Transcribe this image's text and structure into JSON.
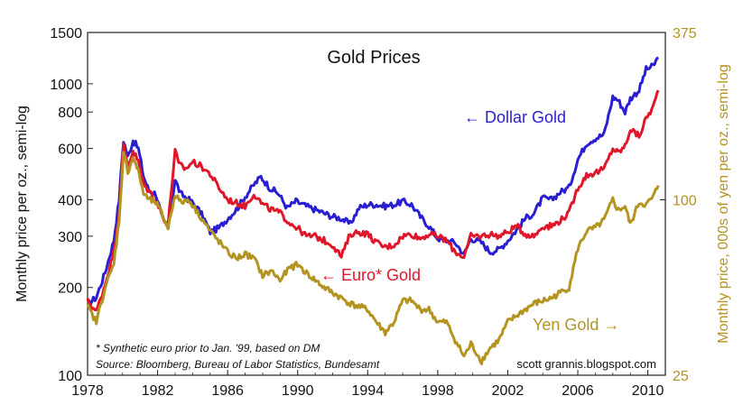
{
  "chart_data": {
    "type": "line",
    "title": "Gold Prices",
    "ylabel_left": "Monthly price per oz., semi-log",
    "ylabel_right": "Monthly price, 000s of yen per oz., semi-log",
    "left_axis": {
      "scale": "log",
      "range": [
        100,
        1500
      ],
      "ticks": [
        "1500",
        "1000",
        "800",
        "600",
        "400",
        "300",
        "200",
        "100"
      ]
    },
    "right_axis": {
      "scale": "log",
      "range": [
        25,
        375
      ],
      "ticks": [
        "375",
        "100",
        "25"
      ]
    },
    "x_axis": {
      "range": [
        1978,
        2011
      ],
      "ticks": [
        "1978",
        "1982",
        "1986",
        "1990",
        "1994",
        "1998",
        "2002",
        "2006",
        "2010"
      ]
    },
    "legend_placement": "inline labels",
    "series": [
      {
        "name": "Dollar Gold",
        "color": "#2a1fd0",
        "axis": "left",
        "points": [
          [
            1978.0,
            175
          ],
          [
            1978.5,
            185
          ],
          [
            1979.0,
            225
          ],
          [
            1979.5,
            290
          ],
          [
            1979.8,
            400
          ],
          [
            1980.05,
            640
          ],
          [
            1980.3,
            560
          ],
          [
            1980.6,
            640
          ],
          [
            1980.9,
            600
          ],
          [
            1981.2,
            480
          ],
          [
            1981.5,
            430
          ],
          [
            1981.9,
            420
          ],
          [
            1982.3,
            340
          ],
          [
            1982.6,
            320
          ],
          [
            1983.0,
            470
          ],
          [
            1983.3,
            420
          ],
          [
            1983.8,
            400
          ],
          [
            1984.2,
            380
          ],
          [
            1984.6,
            350
          ],
          [
            1985.0,
            310
          ],
          [
            1985.5,
            320
          ],
          [
            1986.0,
            345
          ],
          [
            1986.5,
            370
          ],
          [
            1987.0,
            410
          ],
          [
            1987.5,
            450
          ],
          [
            1987.9,
            480
          ],
          [
            1988.4,
            440
          ],
          [
            1988.9,
            420
          ],
          [
            1989.4,
            375
          ],
          [
            1989.9,
            395
          ],
          [
            1990.5,
            380
          ],
          [
            1991.0,
            370
          ],
          [
            1991.5,
            360
          ],
          [
            1992.0,
            350
          ],
          [
            1992.5,
            345
          ],
          [
            1993.0,
            330
          ],
          [
            1993.5,
            375
          ],
          [
            1994.0,
            385
          ],
          [
            1994.5,
            385
          ],
          [
            1995.0,
            380
          ],
          [
            1995.5,
            385
          ],
          [
            1996.0,
            395
          ],
          [
            1996.5,
            385
          ],
          [
            1997.0,
            350
          ],
          [
            1997.5,
            325
          ],
          [
            1998.0,
            295
          ],
          [
            1998.5,
            290
          ],
          [
            1999.0,
            285
          ],
          [
            1999.5,
            260
          ],
          [
            1999.9,
            295
          ],
          [
            2000.5,
            285
          ],
          [
            2001.0,
            265
          ],
          [
            2001.5,
            270
          ],
          [
            2002.0,
            290
          ],
          [
            2002.5,
            315
          ],
          [
            2003.0,
            345
          ],
          [
            2003.5,
            360
          ],
          [
            2004.0,
            405
          ],
          [
            2004.5,
            400
          ],
          [
            2005.0,
            425
          ],
          [
            2005.5,
            440
          ],
          [
            2006.0,
            550
          ],
          [
            2006.5,
            625
          ],
          [
            2007.0,
            650
          ],
          [
            2007.5,
            670
          ],
          [
            2008.0,
            900
          ],
          [
            2008.3,
            880
          ],
          [
            2008.7,
            800
          ],
          [
            2009.0,
            890
          ],
          [
            2009.5,
            950
          ],
          [
            2009.9,
            1120
          ],
          [
            2010.3,
            1150
          ],
          [
            2010.6,
            1230
          ]
        ]
      },
      {
        "name": "Euro* Gold",
        "color": "#e0172b",
        "axis": "left",
        "points": [
          [
            1978.0,
            180
          ],
          [
            1978.5,
            165
          ],
          [
            1979.0,
            205
          ],
          [
            1979.5,
            265
          ],
          [
            1979.8,
            360
          ],
          [
            1980.05,
            610
          ],
          [
            1980.3,
            520
          ],
          [
            1980.6,
            590
          ],
          [
            1980.9,
            540
          ],
          [
            1981.2,
            450
          ],
          [
            1981.5,
            430
          ],
          [
            1981.9,
            400
          ],
          [
            1982.3,
            350
          ],
          [
            1982.6,
            330
          ],
          [
            1983.0,
            590
          ],
          [
            1983.2,
            530
          ],
          [
            1983.6,
            510
          ],
          [
            1984.0,
            540
          ],
          [
            1984.5,
            520
          ],
          [
            1985.0,
            490
          ],
          [
            1985.5,
            440
          ],
          [
            1986.0,
            400
          ],
          [
            1986.5,
            390
          ],
          [
            1987.0,
            380
          ],
          [
            1987.5,
            420
          ],
          [
            1988.0,
            385
          ],
          [
            1988.5,
            370
          ],
          [
            1989.0,
            360
          ],
          [
            1989.5,
            335
          ],
          [
            1990.0,
            320
          ],
          [
            1990.5,
            300
          ],
          [
            1991.0,
            300
          ],
          [
            1991.5,
            290
          ],
          [
            1992.0,
            280
          ],
          [
            1992.5,
            255
          ],
          [
            1993.0,
            305
          ],
          [
            1993.5,
            310
          ],
          [
            1994.0,
            305
          ],
          [
            1994.5,
            285
          ],
          [
            1995.0,
            275
          ],
          [
            1995.5,
            280
          ],
          [
            1996.0,
            300
          ],
          [
            1996.5,
            305
          ],
          [
            1997.0,
            295
          ],
          [
            1997.5,
            305
          ],
          [
            1998.0,
            300
          ],
          [
            1998.5,
            290
          ],
          [
            1999.0,
            265
          ],
          [
            1999.5,
            255
          ],
          [
            1999.9,
            300
          ],
          [
            2000.5,
            300
          ],
          [
            2001.0,
            305
          ],
          [
            2001.5,
            300
          ],
          [
            2002.0,
            310
          ],
          [
            2002.5,
            325
          ],
          [
            2003.0,
            305
          ],
          [
            2003.5,
            300
          ],
          [
            2004.0,
            325
          ],
          [
            2004.5,
            325
          ],
          [
            2005.0,
            340
          ],
          [
            2005.5,
            360
          ],
          [
            2006.0,
            440
          ],
          [
            2006.5,
            485
          ],
          [
            2007.0,
            495
          ],
          [
            2007.5,
            510
          ],
          [
            2008.0,
            600
          ],
          [
            2008.3,
            580
          ],
          [
            2008.7,
            610
          ],
          [
            2009.0,
            700
          ],
          [
            2009.5,
            660
          ],
          [
            2009.9,
            760
          ],
          [
            2010.3,
            830
          ],
          [
            2010.6,
            950
          ]
        ]
      },
      {
        "name": "Yen Gold",
        "color": "#b49420",
        "axis": "right",
        "points": [
          [
            1978.0,
            43
          ],
          [
            1978.5,
            38
          ],
          [
            1979.0,
            50
          ],
          [
            1979.5,
            60
          ],
          [
            1979.8,
            85
          ],
          [
            1980.05,
            145
          ],
          [
            1980.3,
            125
          ],
          [
            1980.6,
            140
          ],
          [
            1980.9,
            125
          ],
          [
            1981.2,
            105
          ],
          [
            1981.5,
            100
          ],
          [
            1981.9,
            98
          ],
          [
            1982.3,
            88
          ],
          [
            1982.6,
            80
          ],
          [
            1983.0,
            105
          ],
          [
            1983.3,
            98
          ],
          [
            1983.8,
            100
          ],
          [
            1984.2,
            92
          ],
          [
            1984.6,
            85
          ],
          [
            1985.0,
            78
          ],
          [
            1985.5,
            72
          ],
          [
            1986.0,
            66
          ],
          [
            1986.5,
            63
          ],
          [
            1987.0,
            65
          ],
          [
            1987.5,
            63
          ],
          [
            1988.0,
            55
          ],
          [
            1988.5,
            57
          ],
          [
            1989.0,
            53
          ],
          [
            1989.5,
            58
          ],
          [
            1990.0,
            60
          ],
          [
            1990.5,
            56
          ],
          [
            1991.0,
            53
          ],
          [
            1991.5,
            50
          ],
          [
            1992.0,
            48
          ],
          [
            1992.5,
            46
          ],
          [
            1993.0,
            44
          ],
          [
            1993.5,
            43
          ],
          [
            1994.0,
            42
          ],
          [
            1994.5,
            38
          ],
          [
            1995.0,
            35
          ],
          [
            1995.5,
            38
          ],
          [
            1996.0,
            45
          ],
          [
            1996.5,
            45
          ],
          [
            1997.0,
            42
          ],
          [
            1997.5,
            42
          ],
          [
            1998.0,
            38
          ],
          [
            1998.5,
            38
          ],
          [
            1999.0,
            33
          ],
          [
            1999.5,
            29
          ],
          [
            1999.9,
            32
          ],
          [
            2000.5,
            28
          ],
          [
            2001.0,
            31
          ],
          [
            2001.5,
            33
          ],
          [
            2002.0,
            38
          ],
          [
            2002.5,
            40
          ],
          [
            2003.0,
            42
          ],
          [
            2003.5,
            44
          ],
          [
            2004.0,
            45
          ],
          [
            2004.5,
            46
          ],
          [
            2005.0,
            48
          ],
          [
            2005.5,
            50
          ],
          [
            2006.0,
            68
          ],
          [
            2006.5,
            78
          ],
          [
            2007.0,
            80
          ],
          [
            2007.5,
            85
          ],
          [
            2008.0,
            100
          ],
          [
            2008.3,
            92
          ],
          [
            2008.7,
            95
          ],
          [
            2009.0,
            82
          ],
          [
            2009.5,
            98
          ],
          [
            2009.9,
            96
          ],
          [
            2010.3,
            102
          ],
          [
            2010.6,
            112
          ]
        ]
      }
    ],
    "labels": {
      "dollar": "← Dollar Gold",
      "euro": "← Euro* Gold",
      "yen": "Yen Gold →"
    },
    "footnote": "* Synthetic euro prior to Jan. '99, based on DM",
    "source": "Source:  Bloomberg, Bureau of Labor Statistics, Bundesamt",
    "credit": "scott grannis.blogspot.com"
  }
}
